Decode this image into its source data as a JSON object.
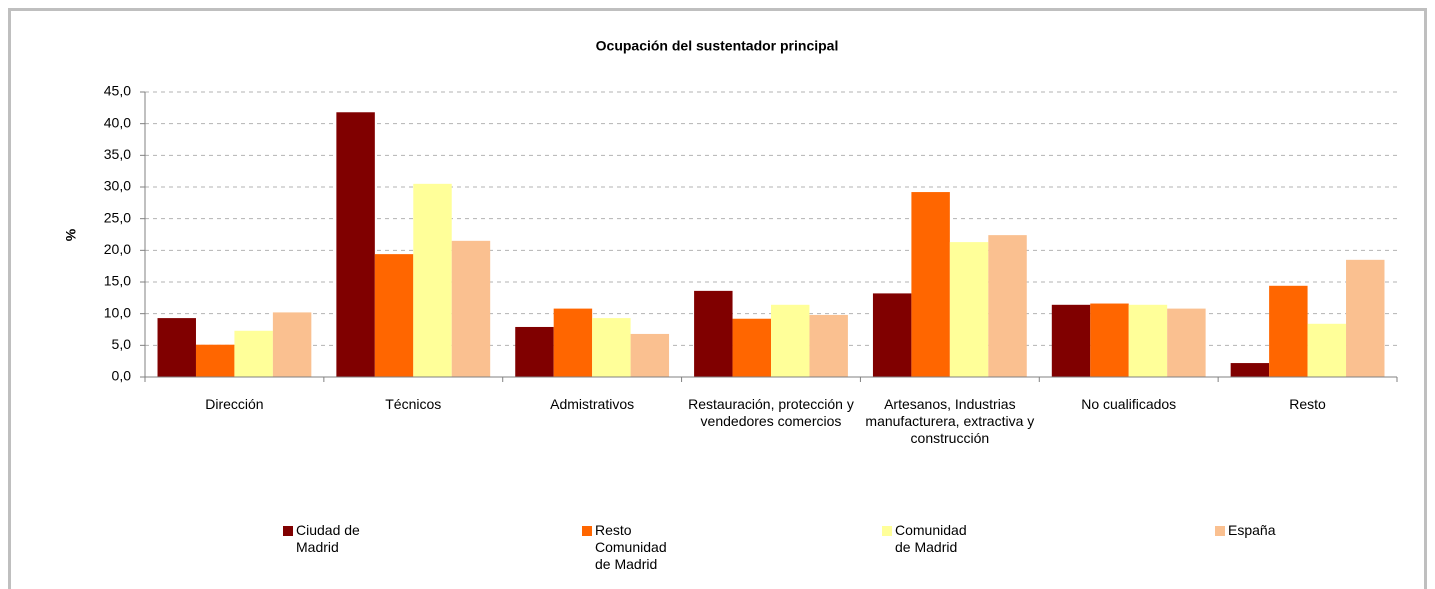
{
  "chart_data": {
    "type": "bar",
    "title": "Ocupación del sustentador principal",
    "ylabel": "%",
    "categories": [
      "Dirección",
      "Técnicos",
      "Admistrativos",
      "Restauración, protección y vendedores comercios",
      "Artesanos, Industrias manufacturera, extractiva y construcción",
      "No cualificados",
      "Resto"
    ],
    "series": [
      {
        "name": "Ciudad de Madrid",
        "color": "#800000",
        "values": [
          9.3,
          41.8,
          7.9,
          13.6,
          13.2,
          11.4,
          2.2
        ]
      },
      {
        "name": "Resto Comunidad de Madrid",
        "color": "#ff6600",
        "values": [
          5.1,
          19.4,
          10.8,
          9.2,
          29.2,
          11.6,
          14.4
        ]
      },
      {
        "name": "Comunidad de Madrid",
        "color": "#ffff99",
        "values": [
          7.3,
          30.5,
          9.3,
          11.4,
          21.3,
          11.4,
          8.4
        ]
      },
      {
        "name": "España",
        "color": "#fac090",
        "values": [
          10.2,
          21.5,
          6.8,
          9.8,
          22.4,
          10.8,
          18.5
        ]
      }
    ],
    "ylim": [
      0,
      45
    ],
    "yticks": [
      {
        "value": 0,
        "label": "0,0"
      },
      {
        "value": 5,
        "label": "5,0"
      },
      {
        "value": 10,
        "label": "10,0"
      },
      {
        "value": 15,
        "label": "15,0"
      },
      {
        "value": 20,
        "label": "20,0"
      },
      {
        "value": 25,
        "label": "25,0"
      },
      {
        "value": 30,
        "label": "30,0"
      },
      {
        "value": 35,
        "label": "35,0"
      },
      {
        "value": 40,
        "label": "40,0"
      },
      {
        "value": 45,
        "label": "45,0"
      }
    ],
    "grid": true,
    "legend": "bottom"
  }
}
